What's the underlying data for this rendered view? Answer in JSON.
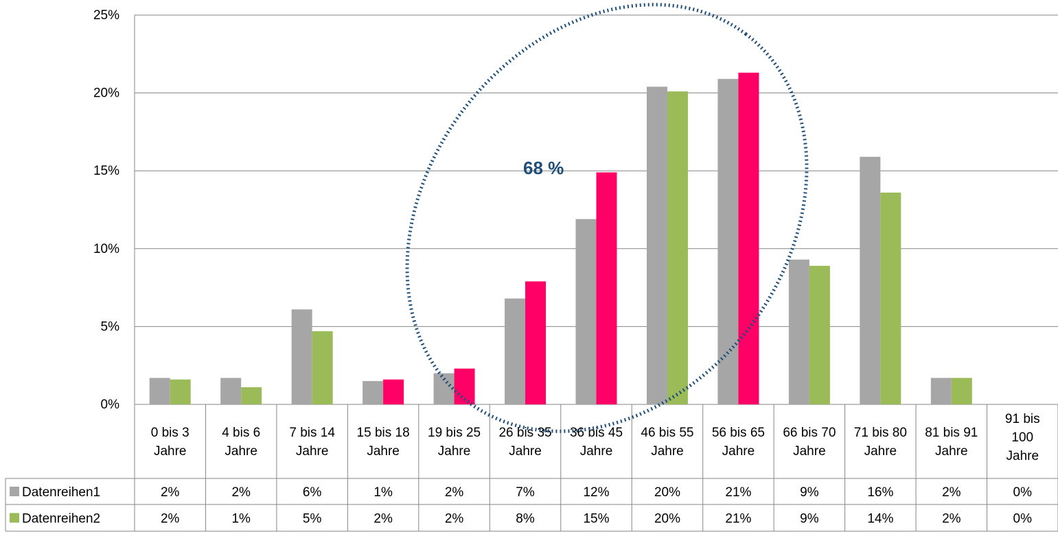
{
  "chart_data": {
    "type": "bar",
    "categories": [
      [
        "0 bis 3",
        "Jahre"
      ],
      [
        "4 bis 6",
        "Jahre"
      ],
      [
        "7 bis 14",
        "Jahre"
      ],
      [
        "15 bis 18",
        "Jahre"
      ],
      [
        "19 bis 25",
        "Jahre"
      ],
      [
        "26 bis 35",
        "Jahre"
      ],
      [
        "36 bis 45",
        "Jahre"
      ],
      [
        "46 bis 55",
        "Jahre"
      ],
      [
        "56 bis 65",
        "Jahre"
      ],
      [
        "66 bis 70",
        "Jahre"
      ],
      [
        "71 bis 80",
        "Jahre"
      ],
      [
        "81 bis 91",
        "Jahre"
      ],
      [
        "91 bis",
        "100",
        "Jahre"
      ]
    ],
    "series": [
      {
        "name": "Datenreihen1",
        "color": "#a6a6a6",
        "values": [
          1.7,
          1.7,
          6.1,
          1.5,
          2.0,
          6.8,
          11.9,
          20.4,
          20.9,
          9.3,
          15.9,
          1.7,
          0.0
        ],
        "table_labels": [
          "2%",
          "2%",
          "6%",
          "1%",
          "2%",
          "7%",
          "12%",
          "20%",
          "21%",
          "9%",
          "16%",
          "2%",
          "0%"
        ]
      },
      {
        "name": "Datenreihen2",
        "color": "#9bbb59",
        "values": [
          1.6,
          1.1,
          4.7,
          1.6,
          2.3,
          7.9,
          14.9,
          20.1,
          21.3,
          8.9,
          13.6,
          1.7,
          0.0
        ],
        "table_labels": [
          "2%",
          "1%",
          "5%",
          "2%",
          "2%",
          "8%",
          "15%",
          "20%",
          "21%",
          "9%",
          "14%",
          "2%",
          "0%"
        ]
      }
    ],
    "highlight_color": "#ff0066",
    "highlight_categories": [
      3,
      4,
      5,
      6,
      8
    ],
    "ylim": [
      0,
      25
    ],
    "yticks": [
      0,
      5,
      10,
      15,
      20,
      25
    ],
    "ytick_labels": [
      "0%",
      "5%",
      "10%",
      "15%",
      "20%",
      "25%"
    ],
    "grid": true,
    "legend": "data-table",
    "annotation": {
      "text": "68 %",
      "color": "#1f4e79",
      "shape": "dotted-ellipse"
    }
  }
}
